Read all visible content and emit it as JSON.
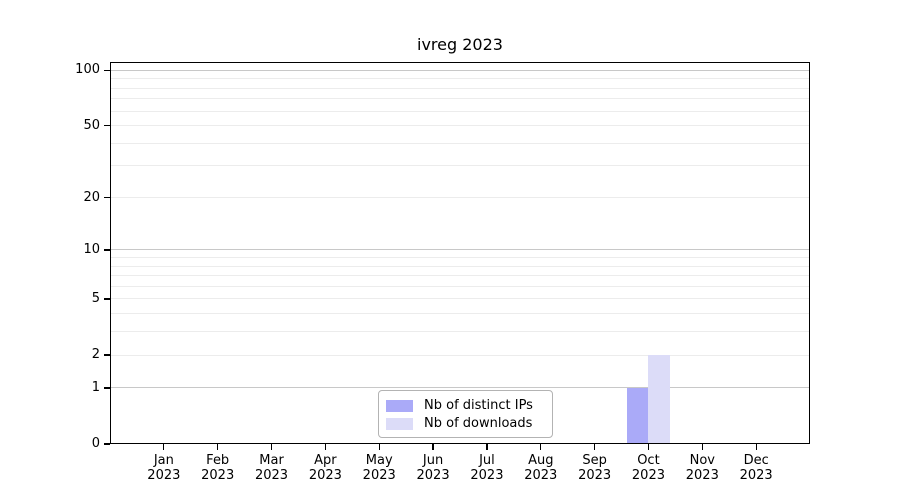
{
  "title": "ivreg 2023",
  "chart_data": {
    "type": "bar",
    "title": "ivreg 2023",
    "categories": [
      "Jan 2023",
      "Feb 2023",
      "Mar 2023",
      "Apr 2023",
      "May 2023",
      "Jun 2023",
      "Jul 2023",
      "Aug 2023",
      "Sep 2023",
      "Oct 2023",
      "Nov 2023",
      "Dec 2023"
    ],
    "series": [
      {
        "name": "Nb of distinct IPs",
        "color": "#aaaaf8",
        "values": [
          0,
          0,
          0,
          0,
          0,
          0,
          0,
          0,
          0,
          1,
          0,
          0
        ]
      },
      {
        "name": "Nb of downloads",
        "color": "#dcdcf8",
        "values": [
          0,
          0,
          0,
          0,
          0,
          0,
          0,
          0,
          0,
          2,
          0,
          0
        ]
      }
    ],
    "xlabel": "",
    "ylabel": "",
    "yscale": "log1p",
    "ylim": [
      0,
      111
    ],
    "y_ticks": [
      0,
      1,
      2,
      5,
      10,
      20,
      50,
      100
    ],
    "y_major_gridlines": [
      1,
      10,
      100
    ],
    "y_minor_gridlines": [
      2,
      3,
      4,
      5,
      6,
      7,
      8,
      9,
      20,
      30,
      40,
      50,
      60,
      70,
      80,
      90
    ],
    "grid": "horizontal",
    "legend_position": "inside-bottom-center"
  },
  "colors": {
    "background": "#ffffff",
    "axis": "#000000",
    "major_grid": "#c8c8c8",
    "minor_grid": "#ececec",
    "bar_distinct_ips": "#aaaaf8",
    "bar_downloads": "#dcdcf8",
    "legend_border": "#b3b3b3"
  }
}
